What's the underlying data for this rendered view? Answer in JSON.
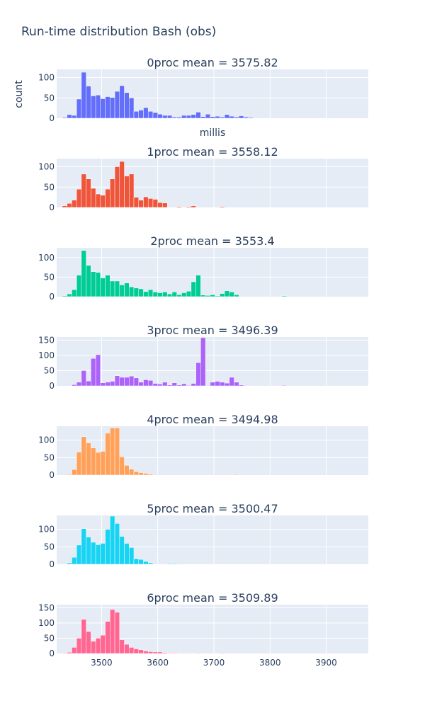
{
  "chart_data": {
    "type": "bar",
    "title": "Run-time distribution Bash (obs)",
    "xlabel": "millis",
    "ylabel": "count",
    "xlim": [
      3420,
      3975
    ],
    "x_ticks": [
      3500,
      3600,
      3700,
      3800,
      3900
    ],
    "bin_start": 3430,
    "bin_width": 8.5,
    "grid": true,
    "panels": [
      {
        "title": "0proc mean = 3575.82",
        "color": "#636efa",
        "ylim": [
          0,
          120
        ],
        "y_ticks": [
          0,
          50,
          100
        ],
        "counts": [
          2,
          9,
          7,
          47,
          113,
          79,
          55,
          57,
          48,
          53,
          51,
          66,
          80,
          63,
          50,
          17,
          20,
          26,
          17,
          14,
          10,
          7,
          7,
          3,
          3,
          7,
          7,
          9,
          15,
          4,
          10,
          4,
          5,
          3,
          9,
          5,
          3,
          6,
          3,
          2,
          0,
          0,
          0,
          0,
          0,
          0,
          0,
          0,
          0,
          0,
          0,
          0,
          0,
          0,
          0,
          0,
          0,
          0,
          0,
          0,
          0,
          0,
          0,
          0,
          0,
          2,
          2,
          0,
          0,
          0,
          2
        ]
      },
      {
        "title": "1proc mean = 3558.12",
        "color": "#ef553b",
        "ylim": [
          0,
          120
        ],
        "y_ticks": [
          0,
          50,
          100
        ],
        "counts": [
          4,
          10,
          18,
          45,
          82,
          70,
          47,
          33,
          30,
          45,
          70,
          100,
          113,
          77,
          82,
          25,
          18,
          26,
          22,
          20,
          12,
          11,
          0,
          0,
          2,
          0,
          2,
          4,
          0,
          0,
          0,
          0,
          0,
          2,
          0,
          0,
          0,
          0,
          0,
          0,
          0,
          0,
          0,
          0,
          0,
          0,
          0,
          0,
          0,
          0,
          0,
          0,
          0,
          0,
          0,
          0,
          0,
          0,
          0,
          0,
          0,
          0,
          0,
          0,
          0,
          0,
          0,
          0,
          0,
          0,
          0
        ]
      },
      {
        "title": "2proc mean = 3553.4",
        "color": "#00cc96",
        "ylim": [
          0,
          125
        ],
        "y_ticks": [
          0,
          50,
          100
        ],
        "counts": [
          2,
          7,
          18,
          55,
          118,
          80,
          64,
          62,
          48,
          55,
          40,
          40,
          30,
          35,
          25,
          22,
          20,
          13,
          18,
          12,
          10,
          12,
          7,
          12,
          5,
          10,
          14,
          38,
          55,
          4,
          3,
          5,
          2,
          8,
          15,
          12,
          5,
          0,
          0,
          0,
          0,
          0,
          0,
          0,
          0,
          0,
          2,
          0,
          0,
          0,
          0,
          0,
          0,
          0,
          0,
          0,
          0,
          0,
          0,
          0,
          0,
          0,
          0,
          0,
          0,
          0,
          0,
          0,
          0,
          0,
          0
        ]
      },
      {
        "title": "3proc mean = 3496.39",
        "color": "#ab63fa",
        "ylim": [
          0,
          160
        ],
        "y_ticks": [
          0,
          50,
          100,
          150
        ],
        "counts": [
          0,
          0,
          4,
          12,
          50,
          16,
          90,
          102,
          10,
          12,
          15,
          33,
          28,
          28,
          32,
          26,
          12,
          20,
          18,
          8,
          6,
          12,
          3,
          10,
          3,
          7,
          2,
          8,
          76,
          158,
          0,
          12,
          15,
          12,
          9,
          28,
          12,
          3,
          0,
          0,
          0,
          0,
          0,
          0,
          0,
          0,
          2,
          0,
          0,
          0,
          0,
          0,
          0,
          0,
          0,
          0,
          0,
          0,
          0,
          0,
          0,
          0,
          0,
          0,
          0,
          0,
          0,
          0,
          0,
          0,
          0
        ]
      },
      {
        "title": "4proc mean = 3494.98",
        "color": "#ffa15a",
        "ylim": [
          0,
          140
        ],
        "y_ticks": [
          0,
          50,
          100
        ],
        "counts": [
          0,
          2,
          16,
          66,
          110,
          92,
          78,
          65,
          68,
          120,
          135,
          135,
          52,
          28,
          17,
          10,
          7,
          5,
          3,
          0,
          0,
          0,
          0,
          0,
          0,
          0,
          0,
          0,
          0,
          0,
          0,
          0,
          0,
          0,
          0,
          0,
          2,
          0,
          0,
          0,
          0,
          0,
          0,
          0,
          0,
          0,
          0,
          0,
          0,
          0,
          0,
          0,
          0,
          0,
          0,
          0,
          0,
          0,
          0,
          0,
          0,
          0,
          0,
          0,
          0,
          0,
          0,
          0,
          0,
          0,
          0
        ]
      },
      {
        "title": "5proc mean = 3500.47",
        "color": "#19d3f3",
        "ylim": [
          0,
          140
        ],
        "y_ticks": [
          0,
          50,
          100
        ],
        "counts": [
          0,
          4,
          20,
          55,
          102,
          78,
          63,
          56,
          60,
          100,
          138,
          117,
          80,
          60,
          48,
          16,
          14,
          8,
          4,
          0,
          0,
          0,
          2,
          2,
          0,
          0,
          0,
          0,
          0,
          0,
          0,
          0,
          0,
          0,
          0,
          0,
          0,
          0,
          0,
          0,
          0,
          0,
          0,
          0,
          0,
          0,
          0,
          0,
          0,
          0,
          0,
          0,
          0,
          0,
          0,
          0,
          0,
          0,
          0,
          0,
          0,
          0,
          0,
          0,
          0,
          0,
          0,
          0,
          0,
          0,
          0
        ]
      },
      {
        "title": "6proc mean = 3509.89",
        "color": "#ff6692",
        "ylim": [
          0,
          160
        ],
        "y_ticks": [
          0,
          50,
          100,
          150
        ],
        "counts": [
          2,
          4,
          20,
          50,
          112,
          72,
          40,
          50,
          60,
          105,
          144,
          135,
          45,
          30,
          20,
          15,
          12,
          8,
          6,
          5,
          5,
          3,
          2,
          2,
          0,
          2,
          0,
          0,
          2,
          0,
          0,
          0,
          0,
          2,
          0,
          0,
          0,
          0,
          0,
          0,
          0,
          0,
          0,
          0,
          0,
          0,
          0,
          0,
          0,
          0,
          0,
          0,
          0,
          0,
          0,
          0,
          0,
          0,
          0,
          0,
          0,
          0,
          0,
          0,
          0,
          0,
          0,
          0,
          0,
          0,
          2
        ]
      }
    ]
  }
}
